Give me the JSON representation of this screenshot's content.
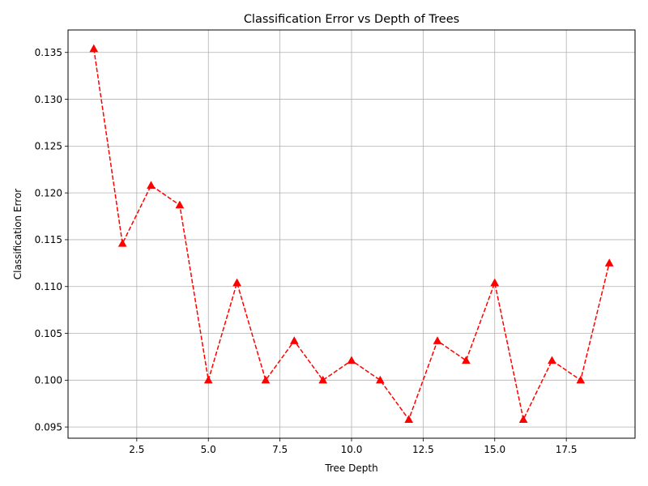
{
  "chart_data": {
    "type": "line",
    "title": "Classification Error vs Depth of Trees",
    "xlabel": "Tree Depth",
    "ylabel": "Classification Error",
    "xlim": [
      0.1,
      19.9
    ],
    "ylim": [
      0.0938,
      0.1374
    ],
    "x_ticks": [
      2.5,
      5.0,
      7.5,
      10.0,
      12.5,
      15.0,
      17.5
    ],
    "x_tick_labels": [
      "2.5",
      "5.0",
      "7.5",
      "10.0",
      "12.5",
      "15.0",
      "17.5"
    ],
    "y_ticks": [
      0.095,
      0.1,
      0.105,
      0.11,
      0.115,
      0.12,
      0.125,
      0.13,
      0.135
    ],
    "y_tick_labels": [
      "0.095",
      "0.100",
      "0.105",
      "0.110",
      "0.115",
      "0.120",
      "0.125",
      "0.130",
      "0.135"
    ],
    "grid": true,
    "series": [
      {
        "color": "#ff0000",
        "line_style": "dashed",
        "marker": "triangle-up",
        "x": [
          1,
          2,
          3,
          4,
          5,
          6,
          7,
          8,
          9,
          10,
          11,
          12,
          13,
          14,
          15,
          16,
          17,
          18,
          19
        ],
        "y": [
          0.1354,
          0.1146,
          0.1208,
          0.1187,
          0.1,
          0.1104,
          0.1,
          0.1042,
          0.1,
          0.1021,
          0.1,
          0.0958,
          0.1042,
          0.1021,
          0.1104,
          0.0958,
          0.1021,
          0.1,
          0.1125
        ]
      }
    ]
  }
}
